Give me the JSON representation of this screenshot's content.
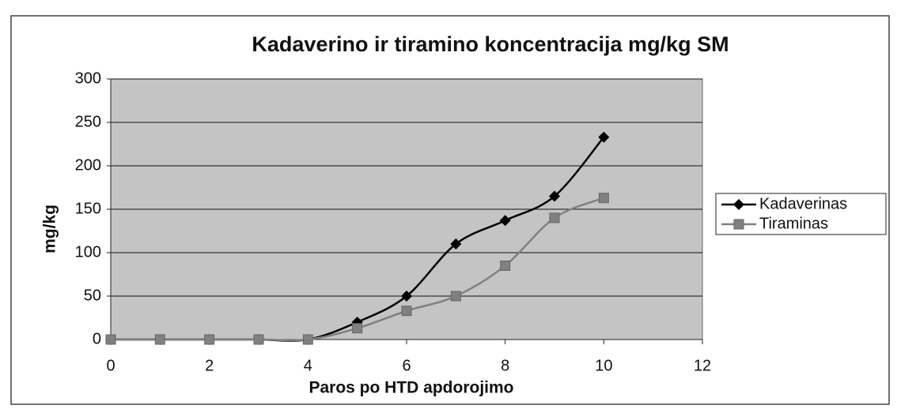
{
  "chart_data": {
    "type": "line",
    "title": "Kadaverino ir tiramino koncentracija mg/kg SM",
    "x_label": "Paros po HTD apdorojimo",
    "y_label": "mg/kg",
    "x": [
      0,
      1,
      2,
      3,
      4,
      5,
      6,
      7,
      8,
      9,
      10
    ],
    "series": [
      {
        "name": "Kadaverinas",
        "color": "#000000",
        "marker": "diamond",
        "values": [
          0,
          0,
          0,
          0,
          0,
          20,
          50,
          110,
          137,
          165,
          233
        ]
      },
      {
        "name": "Tiraminas",
        "color": "#808080",
        "marker": "square",
        "values": [
          0,
          0,
          0,
          0,
          0,
          13,
          33,
          50,
          85,
          140,
          163
        ]
      }
    ],
    "xlim": [
      0,
      12
    ],
    "xticks": [
      0,
      2,
      4,
      6,
      8,
      10,
      12
    ],
    "ylim": [
      0,
      300
    ],
    "yticks": [
      0,
      50,
      100,
      150,
      200,
      250,
      300
    ],
    "grid": true,
    "smooth": true,
    "legend": "right"
  }
}
